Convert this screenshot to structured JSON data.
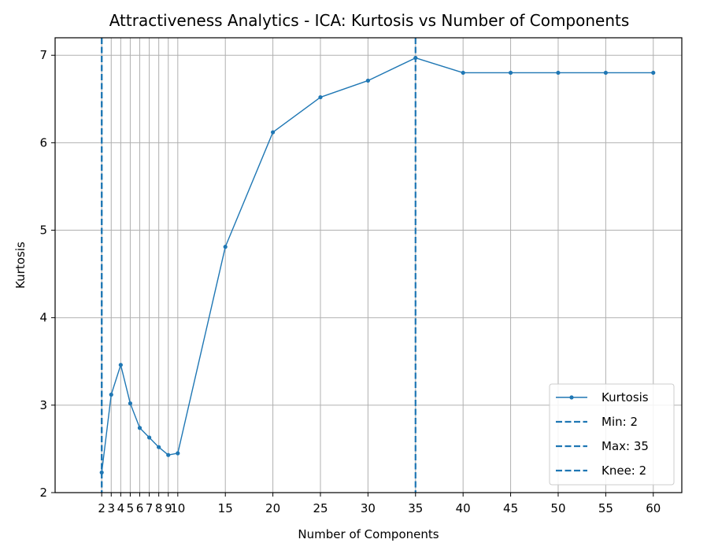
{
  "chart_data": {
    "type": "line",
    "title": "Attractiveness Analytics - ICA: Kurtosis vs Number of Components",
    "xlabel": "Number of Components",
    "ylabel": "Kurtosis",
    "xlim": [
      -2.9,
      63
    ],
    "ylim": [
      2,
      7.2
    ],
    "xticks": [
      2,
      3,
      4,
      5,
      6,
      7,
      8,
      9,
      10,
      15,
      20,
      25,
      30,
      35,
      40,
      45,
      50,
      55,
      60
    ],
    "yticks": [
      2,
      3,
      4,
      5,
      6,
      7
    ],
    "grid": true,
    "legend_position": "lower-right",
    "series": [
      {
        "name": "Kurtosis",
        "color": "#1f77b4",
        "x": [
          2,
          3,
          4,
          5,
          6,
          7,
          8,
          9,
          10,
          15,
          20,
          25,
          30,
          35,
          40,
          45,
          50,
          55,
          60
        ],
        "y": [
          2.23,
          3.12,
          3.46,
          3.02,
          2.74,
          2.63,
          2.52,
          2.43,
          2.45,
          4.81,
          6.12,
          6.52,
          6.71,
          6.97,
          6.8,
          6.8,
          6.8,
          6.8,
          6.8
        ]
      }
    ],
    "vlines": [
      {
        "label": "Min: 2",
        "x": 2,
        "color": "#1f77b4"
      },
      {
        "label": "Max: 35",
        "x": 35,
        "color": "#1f77b4"
      },
      {
        "label": "Knee: 2",
        "x": 2,
        "color": "#1f77b4"
      }
    ]
  }
}
